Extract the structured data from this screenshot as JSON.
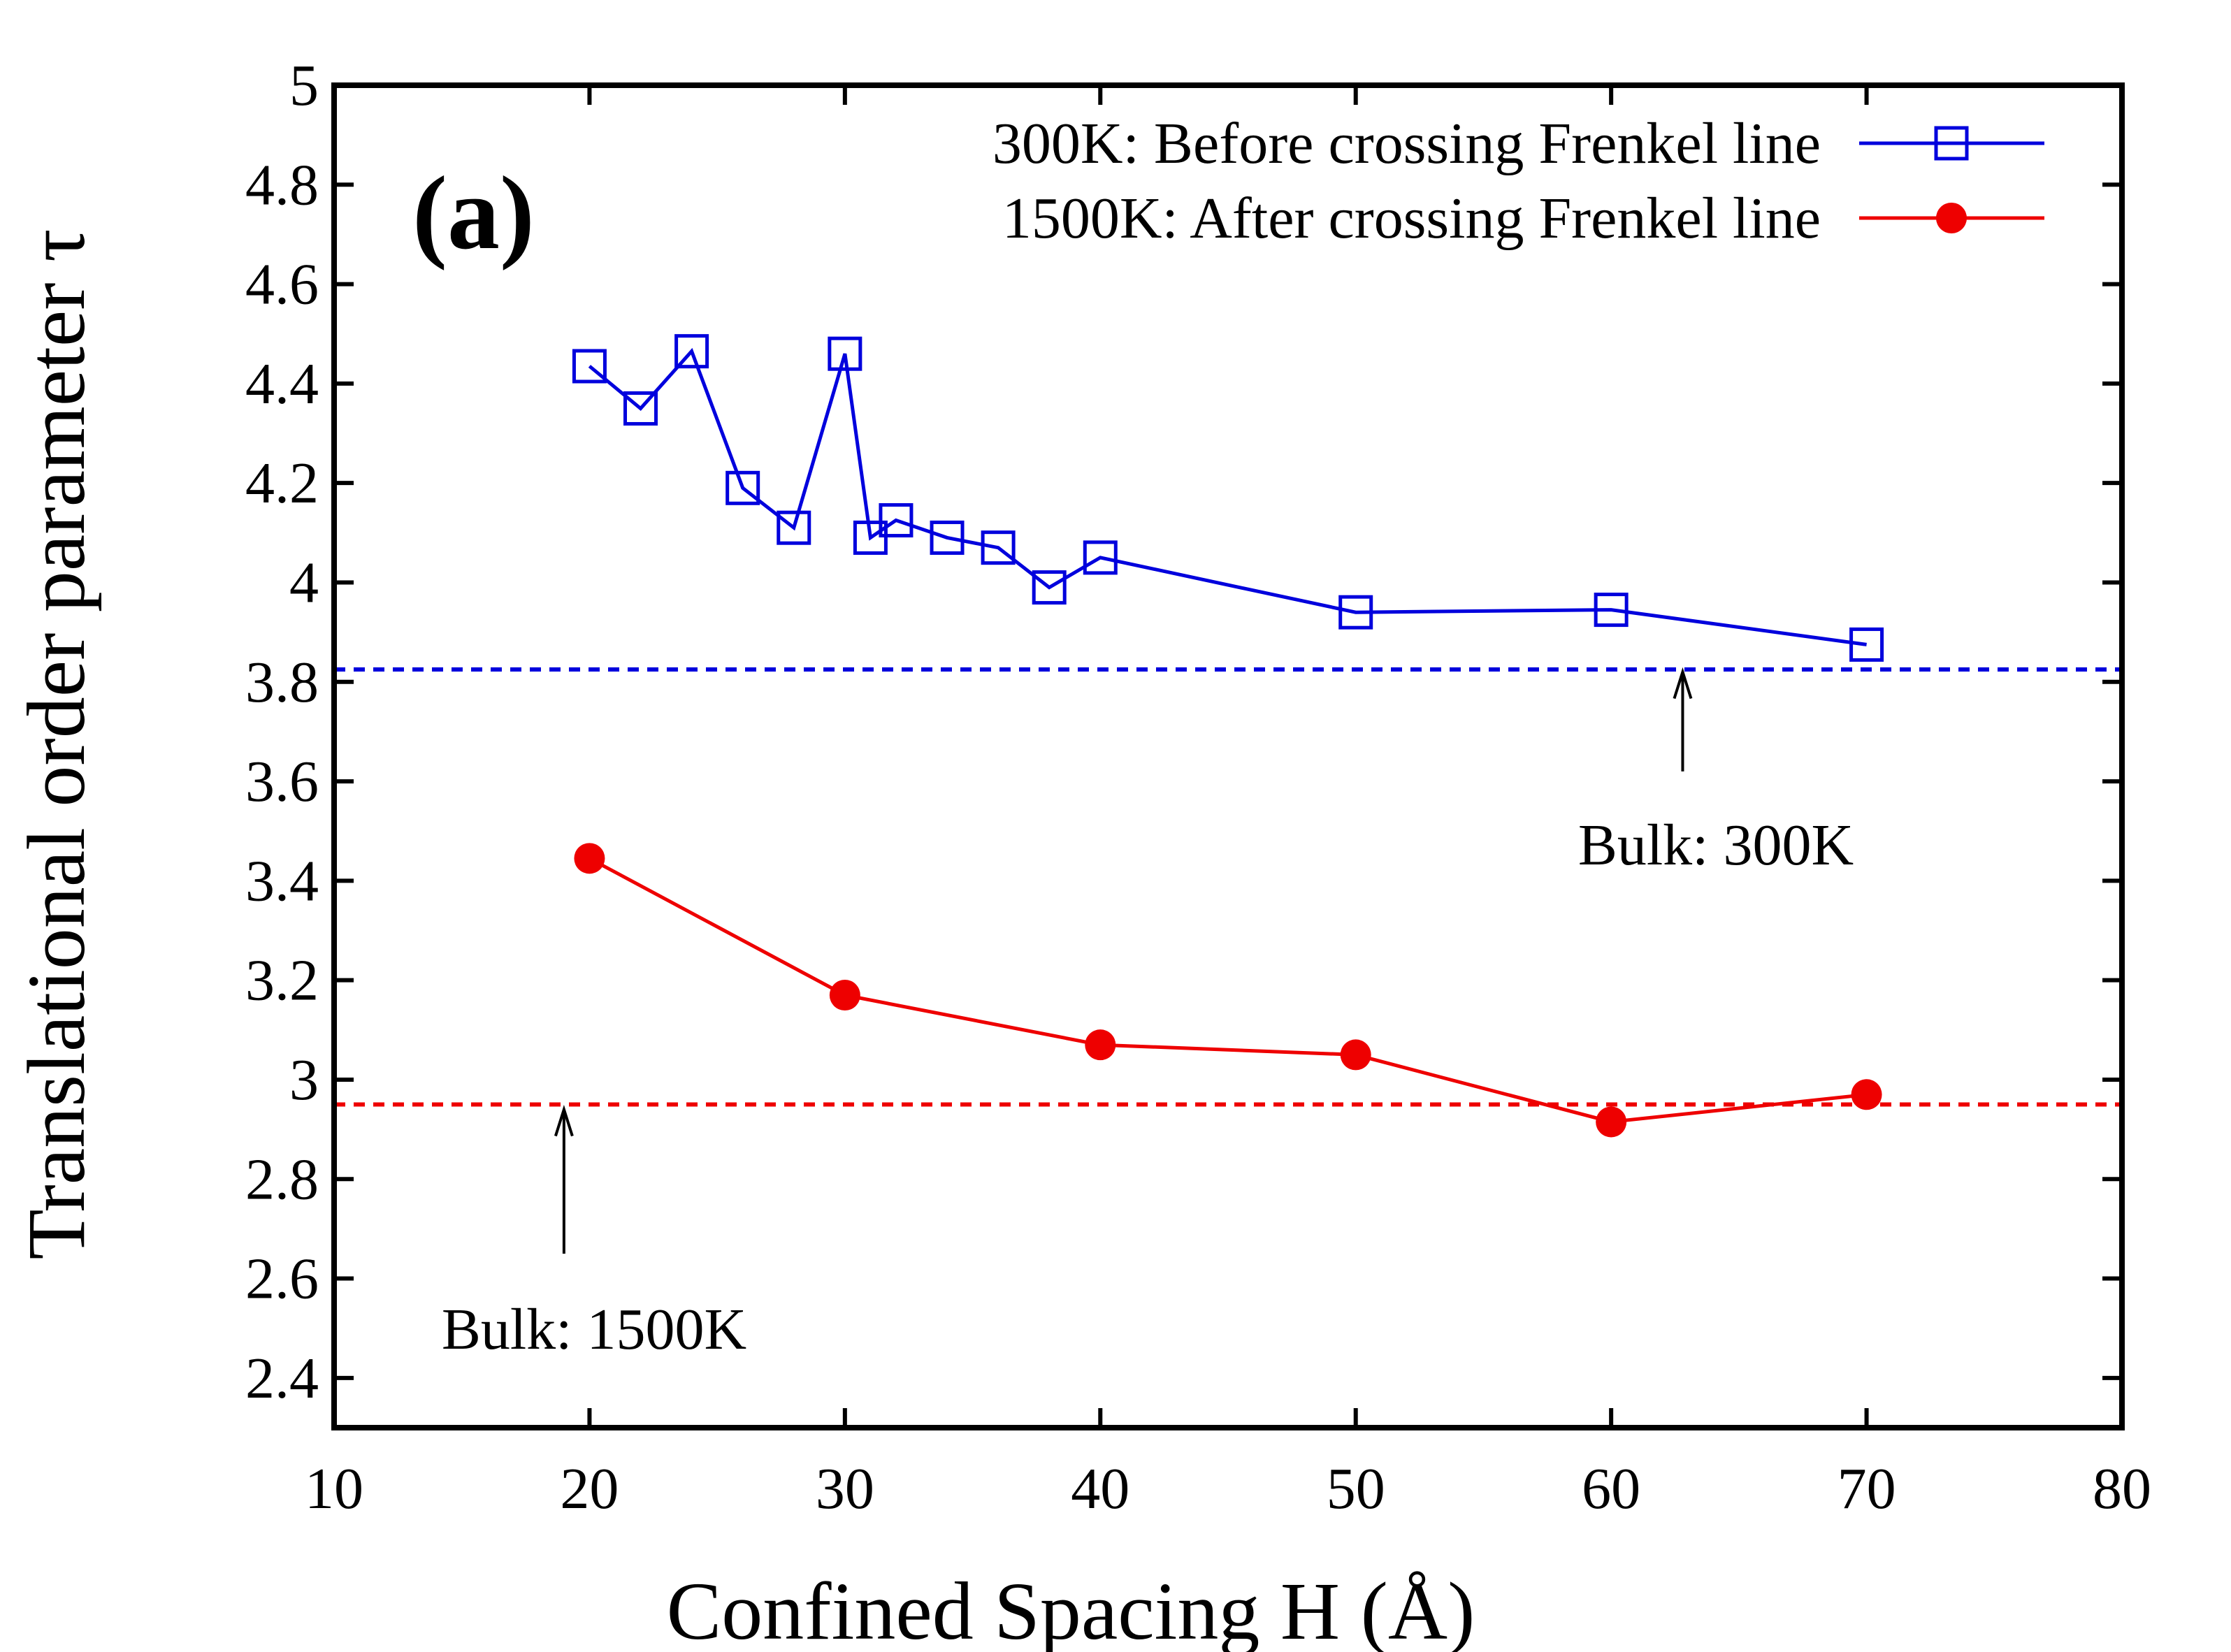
{
  "chart_data": {
    "type": "line",
    "title": "",
    "panel_label": "(a)",
    "xlabel": "Confined Spacing H (Å)",
    "ylabel": "Translational order parameter τ",
    "xlim": [
      10,
      80
    ],
    "ylim": [
      2.3,
      5
    ],
    "xticks": [
      10,
      20,
      30,
      40,
      50,
      60,
      70,
      80
    ],
    "xtick_labels": [
      "10",
      "20",
      "30",
      "40",
      "50",
      "60",
      "70",
      "80"
    ],
    "yticks": [
      2.4,
      2.6,
      2.8,
      3.0,
      3.2,
      3.4,
      3.6,
      3.8,
      4.0,
      4.2,
      4.4,
      4.6,
      4.8,
      5.0
    ],
    "ytick_labels": [
      "2.4",
      "2.6",
      "2.8",
      "3",
      "3.2",
      "3.4",
      "3.6",
      "3.8",
      "4",
      "4.2",
      "4.4",
      "4.6",
      "4.8",
      "5"
    ],
    "legend_position": "top-right",
    "grid": false,
    "series": [
      {
        "name": "300K: Before crossing Frenkel line",
        "color": "#0000dd",
        "marker": "open-square",
        "x": [
          20,
          22,
          24,
          26,
          28,
          30,
          31,
          32,
          34,
          36,
          38,
          40,
          50,
          60,
          70
        ],
        "y": [
          4.435,
          4.35,
          4.465,
          4.19,
          4.11,
          4.46,
          4.09,
          4.125,
          4.09,
          4.07,
          3.99,
          4.05,
          3.94,
          3.945,
          3.875
        ]
      },
      {
        "name": "1500K: After crossing Frenkel line",
        "color": "#ee0000",
        "marker": "filled-circle",
        "x": [
          20,
          30,
          40,
          50,
          60,
          70
        ],
        "y": [
          3.445,
          3.17,
          3.07,
          3.05,
          2.915,
          2.97
        ]
      }
    ],
    "reference_lines": [
      {
        "name": "Bulk: 300K",
        "y": 3.825,
        "color": "#0000dd",
        "style": "dashed"
      },
      {
        "name": "Bulk: 1500K",
        "y": 2.95,
        "color": "#ee0000",
        "style": "dashed"
      }
    ],
    "annotations": [
      {
        "text": "Bulk: 300K",
        "arrow_x": 62.8,
        "arrow_from_y": 3.62,
        "arrow_to_y": 3.82
      },
      {
        "text": "Bulk: 1500K",
        "arrow_x": 19,
        "arrow_from_y": 2.65,
        "arrow_to_y": 2.94
      }
    ]
  }
}
